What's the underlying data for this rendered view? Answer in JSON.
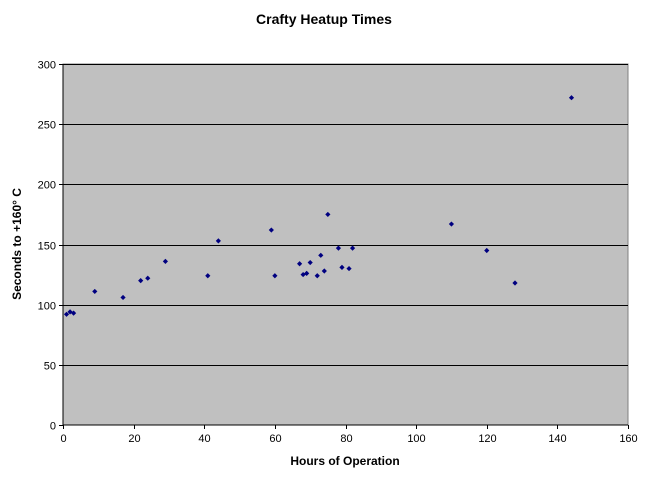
{
  "chart_data": {
    "type": "scatter",
    "title": "Crafty Heatup Times",
    "xlabel": "Hours of Operation",
    "ylabel": "Seconds to +160° C",
    "xlim": [
      0,
      160
    ],
    "ylim": [
      0,
      300
    ],
    "x_ticks": [
      0,
      20,
      40,
      60,
      80,
      100,
      120,
      140,
      160
    ],
    "y_ticks": [
      0,
      50,
      100,
      150,
      200,
      250,
      300
    ],
    "grid": "horizontal",
    "legend": "none",
    "colors": {
      "plot_background": "#c0c0c0",
      "marker": "#000080",
      "gridline": "#000000"
    },
    "series": [
      {
        "points": [
          {
            "x": 1,
            "y": 92
          },
          {
            "x": 2,
            "y": 94
          },
          {
            "x": 3,
            "y": 93
          },
          {
            "x": 9,
            "y": 111
          },
          {
            "x": 17,
            "y": 106
          },
          {
            "x": 22,
            "y": 120
          },
          {
            "x": 24,
            "y": 122
          },
          {
            "x": 29,
            "y": 136
          },
          {
            "x": 41,
            "y": 124
          },
          {
            "x": 44,
            "y": 153
          },
          {
            "x": 59,
            "y": 162
          },
          {
            "x": 60,
            "y": 124
          },
          {
            "x": 67,
            "y": 134
          },
          {
            "x": 68,
            "y": 125
          },
          {
            "x": 69,
            "y": 126
          },
          {
            "x": 70,
            "y": 135
          },
          {
            "x": 72,
            "y": 124
          },
          {
            "x": 73,
            "y": 141
          },
          {
            "x": 74,
            "y": 128
          },
          {
            "x": 75,
            "y": 175
          },
          {
            "x": 78,
            "y": 147
          },
          {
            "x": 79,
            "y": 131
          },
          {
            "x": 81,
            "y": 130
          },
          {
            "x": 82,
            "y": 147
          },
          {
            "x": 110,
            "y": 167
          },
          {
            "x": 120,
            "y": 145
          },
          {
            "x": 128,
            "y": 118
          },
          {
            "x": 144,
            "y": 272
          }
        ]
      }
    ]
  }
}
